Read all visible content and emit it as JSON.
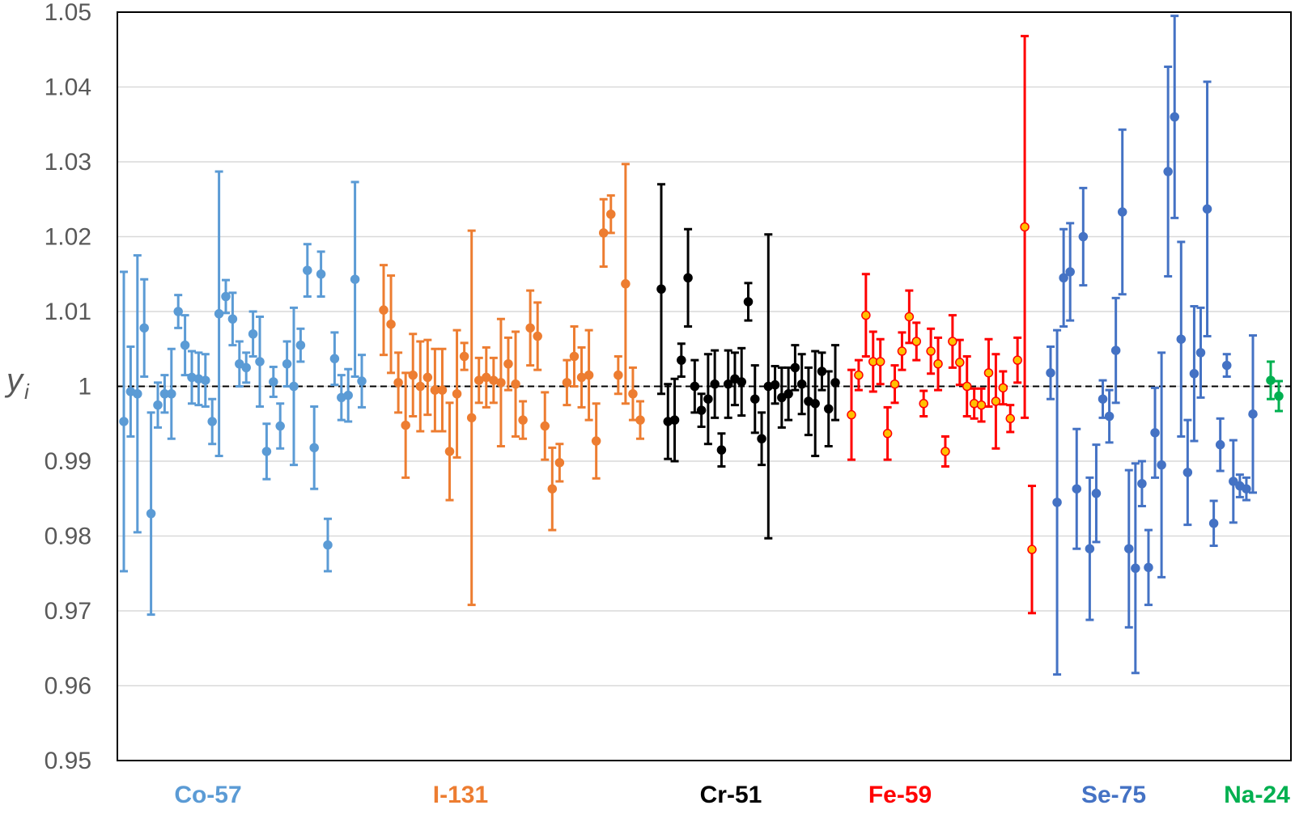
{
  "chart_data": {
    "type": "scatter",
    "title": "",
    "xlabel": "",
    "ylabel": "y",
    "ylabel_subscript": "i",
    "ylim": [
      0.95,
      1.05
    ],
    "yticks": [
      0.95,
      0.96,
      0.97,
      0.98,
      0.99,
      1,
      1.01,
      1.02,
      1.03,
      1.04,
      1.05
    ],
    "ytick_labels": [
      "0.95",
      "0.96",
      "0.97",
      "0.98",
      "0.99",
      "1",
      "1.01",
      "1.02",
      "1.03",
      "1.04",
      "1.05"
    ],
    "grid": "horizontal",
    "reference_line": {
      "y": 1,
      "style": "dashed",
      "color": "#000000"
    },
    "error_bars": true,
    "series": [
      {
        "name": "Co-57",
        "color": "#5B9BD5",
        "marker_fill": "#5B9BD5",
        "y": [
          0.9953,
          0.9993,
          0.999,
          1.0078,
          0.983,
          0.9975,
          0.999,
          0.999,
          1.01,
          1.0055,
          1.0012,
          1.001,
          1.0008,
          0.9953,
          1.0097,
          1.012,
          1.009,
          1.003,
          1.0025,
          1.007,
          1.0033,
          0.9913,
          1.0006,
          0.9947,
          1.003,
          1.0,
          1.0055,
          1.0155,
          0.9918,
          1.015,
          0.9788,
          1.0037,
          0.9985,
          0.9988,
          1.0143,
          1.0007
        ],
        "err": [
          0.02,
          0.006,
          0.0185,
          0.0065,
          0.0135,
          0.003,
          0.0025,
          0.006,
          0.0022,
          0.004,
          0.0035,
          0.0035,
          0.0035,
          0.003,
          0.019,
          0.0022,
          0.0035,
          0.003,
          0.002,
          0.003,
          0.006,
          0.0037,
          0.002,
          0.003,
          0.003,
          0.0105,
          0.0022,
          0.0035,
          0.0055,
          0.003,
          0.0035,
          0.0035,
          0.003,
          0.0035,
          0.013,
          0.0035
        ]
      },
      {
        "name": "I-131",
        "color": "#ED7D31",
        "marker_fill": "#ED7D31",
        "y": [
          1.0102,
          1.0083,
          1.0005,
          0.9948,
          1.0015,
          1.0,
          1.0012,
          0.9995,
          0.9995,
          0.9913,
          0.999,
          1.004,
          0.9958,
          1.0008,
          1.0012,
          1.0008,
          1.0005,
          1.003,
          1.0003,
          0.9955,
          1.0078,
          1.0067,
          0.9947,
          0.9863,
          0.9898,
          1.0005,
          1.004,
          1.0012,
          1.0015,
          0.9927,
          1.0205,
          1.023,
          1.0015,
          1.0137,
          0.999,
          0.9955
        ],
        "err": [
          0.006,
          0.0065,
          0.004,
          0.007,
          0.0055,
          0.006,
          0.005,
          0.0055,
          0.0055,
          0.0065,
          0.0085,
          0.0018,
          0.025,
          0.003,
          0.004,
          0.003,
          0.0085,
          0.0035,
          0.007,
          0.0025,
          0.005,
          0.0045,
          0.0045,
          0.0055,
          0.0025,
          0.003,
          0.004,
          0.004,
          0.006,
          0.005,
          0.0045,
          0.0025,
          0.0025,
          0.016,
          0.0035,
          0.0025
        ]
      },
      {
        "name": "Cr-51",
        "color": "#000000",
        "marker_fill": "#000000",
        "y": [
          1.013,
          0.9953,
          0.9955,
          1.0035,
          1.0145,
          1.0,
          0.9968,
          0.9983,
          1.0003,
          0.9915,
          1.0003,
          1.001,
          1.0006,
          1.0113,
          0.9983,
          0.993,
          1.0,
          1.0002,
          0.9985,
          0.999,
          1.0025,
          1.0003,
          0.998,
          0.9977,
          1.002,
          0.997,
          1.0005
        ],
        "err": [
          0.014,
          0.005,
          0.0055,
          0.0022,
          0.0065,
          0.0035,
          0.0022,
          0.006,
          0.0045,
          0.0022,
          0.0045,
          0.0035,
          0.0045,
          0.0025,
          0.0045,
          0.0035,
          0.0203,
          0.0025,
          0.004,
          0.0035,
          0.003,
          0.004,
          0.0045,
          0.007,
          0.0025,
          0.005,
          0.005
        ]
      },
      {
        "name": "Fe-59",
        "color": "#FF0000",
        "marker_fill": "#FFC000",
        "y": [
          0.9962,
          1.0015,
          1.0095,
          1.0033,
          1.0033,
          0.9937,
          1.0003,
          1.0047,
          1.0093,
          1.006,
          0.9977,
          1.0047,
          1.003,
          0.9913,
          1.006,
          1.0032,
          1.0,
          0.9977,
          0.9975,
          1.0018,
          0.998,
          0.9998,
          0.9957,
          1.0035,
          1.0213,
          0.9782
        ],
        "err": [
          0.006,
          0.002,
          0.0055,
          0.004,
          0.003,
          0.0035,
          0.0025,
          0.0025,
          0.0035,
          0.0025,
          0.0017,
          0.003,
          0.0035,
          0.002,
          0.0035,
          0.003,
          0.004,
          0.002,
          0.0022,
          0.0045,
          0.0063,
          0.0022,
          0.0018,
          0.003,
          0.0255,
          0.0085
        ]
      },
      {
        "name": "Se-75",
        "color": "#4472C4",
        "marker_fill": "#4472C4",
        "y": [
          1.0018,
          0.9845,
          1.0145,
          1.0153,
          0.9863,
          1.02,
          0.9783,
          0.9857,
          0.9983,
          0.996,
          1.0048,
          1.0233,
          0.9783,
          0.9757,
          0.987,
          0.9758,
          0.9938,
          0.9895,
          1.0287,
          1.036,
          1.0063,
          0.9885,
          1.0017,
          1.0045,
          1.0237,
          0.9817,
          0.9922,
          1.0028,
          0.9873,
          0.9867,
          0.9863,
          0.9963
        ],
        "err": [
          0.0035,
          0.023,
          0.0065,
          0.0065,
          0.008,
          0.0065,
          0.0095,
          0.0065,
          0.0025,
          0.0035,
          0.007,
          0.011,
          0.0105,
          0.014,
          0.003,
          0.005,
          0.006,
          0.015,
          0.014,
          0.0135,
          0.013,
          0.007,
          0.009,
          0.006,
          0.017,
          0.003,
          0.0035,
          0.0015,
          0.0055,
          0.0015,
          0.0015,
          0.0105
        ]
      },
      {
        "name": "Na-24",
        "color": "#00B050",
        "marker_fill": "#00B050",
        "y": [
          1.0008,
          0.9987
        ],
        "err": [
          0.0025,
          0.002
        ]
      }
    ]
  }
}
